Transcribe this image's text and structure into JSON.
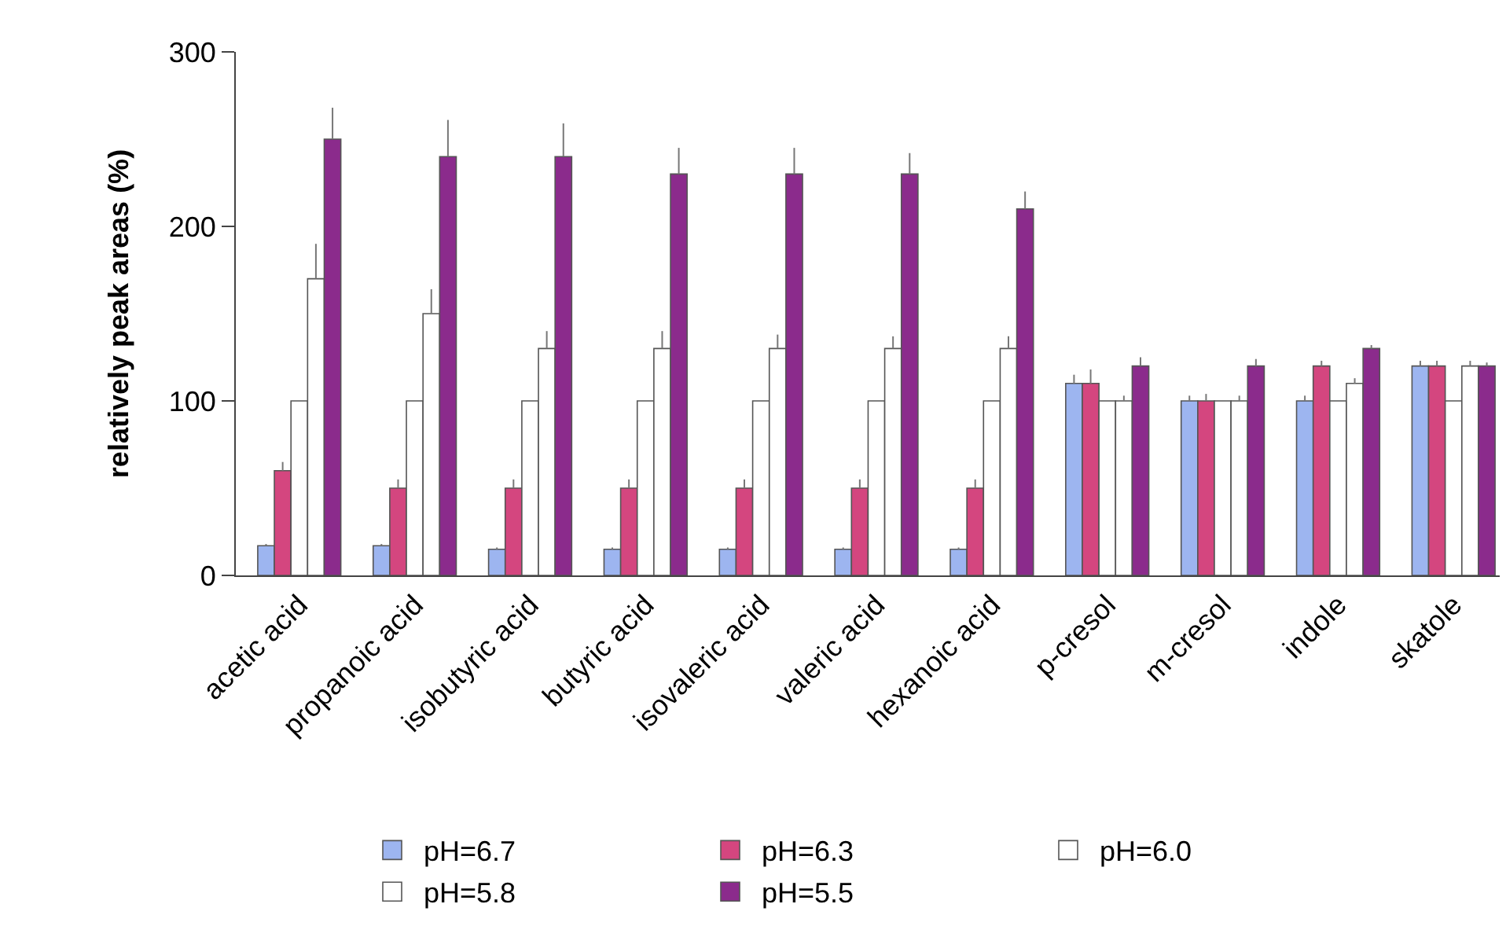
{
  "chart_data": {
    "type": "bar",
    "ylabel": "relatively peak areas (%)",
    "categories": [
      "acetic acid",
      "propanoic acid",
      "isobutyric acid",
      "butyric acid",
      "isovaleric acid",
      "valeric acid",
      "hexanoic acid",
      "p-cresol",
      "m-cresol",
      "indole",
      "skatole"
    ],
    "series": [
      {
        "name": "pH=6.7",
        "color": "#9db5f0",
        "values": [
          17,
          17,
          15,
          15,
          15,
          15,
          15,
          110,
          100,
          100,
          120
        ],
        "errors": [
          [
            17,
            18
          ],
          [
            17,
            18
          ],
          [
            15,
            16
          ],
          [
            15,
            16
          ],
          [
            15,
            16
          ],
          [
            15,
            16
          ],
          [
            15,
            16
          ],
          [
            110,
            115
          ],
          [
            100,
            103
          ],
          [
            100,
            103
          ],
          [
            120,
            123
          ]
        ]
      },
      {
        "name": "pH=6.3",
        "color": "#d4467f",
        "values": [
          60,
          50,
          50,
          50,
          50,
          50,
          50,
          110,
          100,
          120,
          120
        ],
        "errors": [
          [
            60,
            65
          ],
          [
            50,
            55
          ],
          [
            50,
            55
          ],
          [
            50,
            55
          ],
          [
            50,
            55
          ],
          [
            50,
            55
          ],
          [
            50,
            55
          ],
          [
            110,
            118
          ],
          [
            100,
            104
          ],
          [
            120,
            123
          ],
          [
            120,
            123
          ]
        ]
      },
      {
        "name": "pH=6.0",
        "color": "#ffffff",
        "values": [
          100,
          100,
          100,
          100,
          100,
          100,
          100,
          100,
          100,
          100,
          100
        ]
      },
      {
        "name": "pH=5.8",
        "color": "#ffffff",
        "values": [
          170,
          150,
          130,
          130,
          130,
          130,
          130,
          100,
          100,
          110,
          120
        ],
        "errors": [
          [
            170,
            190
          ],
          [
            150,
            164
          ],
          [
            130,
            140
          ],
          [
            130,
            140
          ],
          [
            130,
            138
          ],
          [
            130,
            137
          ],
          [
            130,
            137
          ],
          [
            100,
            103
          ],
          [
            100,
            103
          ],
          [
            110,
            113
          ],
          [
            120,
            123
          ]
        ]
      },
      {
        "name": "pH=5.5",
        "color": "#8b2b8c",
        "values": [
          250,
          240,
          240,
          230,
          230,
          230,
          210,
          120,
          120,
          130,
          120
        ],
        "errors": [
          [
            250,
            268
          ],
          [
            240,
            261
          ],
          [
            240,
            259
          ],
          [
            230,
            245
          ],
          [
            230,
            245
          ],
          [
            230,
            242
          ],
          [
            210,
            220
          ],
          [
            120,
            125
          ],
          [
            120,
            124
          ],
          [
            130,
            132
          ],
          [
            120,
            122
          ]
        ]
      }
    ],
    "ylim": [
      0,
      300
    ],
    "yticks": [
      0,
      100,
      200,
      300
    ],
    "grid": false,
    "legend": "bottom"
  }
}
